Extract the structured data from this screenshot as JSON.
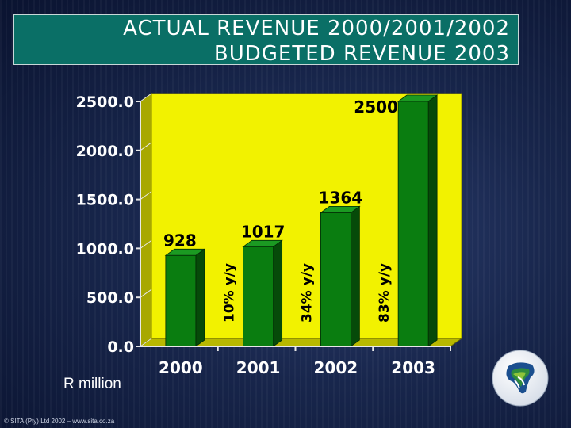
{
  "title_lines": [
    "ACTUAL REVENUE 2000/2001/2002",
    "BUDGETED REVENUE 2003"
  ],
  "unit_label": "R million",
  "copyright": "© SITA (Pty) Ltd 2002 – www.sita.co.za",
  "colors": {
    "title_box": "#0a6f66",
    "plot_back": "#f2f200",
    "plot_side": "#a8a800",
    "plot_floor": "#b8b800",
    "bar_front": "#0a7d10",
    "bar_top": "#1b9a22",
    "bar_side": "#064a09"
  },
  "chart_data": {
    "type": "bar",
    "categories": [
      "2000",
      "2001",
      "2002",
      "2003"
    ],
    "values": [
      928,
      1017,
      1364,
      2500
    ],
    "ylim": [
      0,
      2500
    ],
    "y_ticks": [
      0,
      500,
      1000,
      1500,
      2000,
      2500
    ],
    "y_tick_labels": [
      "0.0",
      "500.0",
      "1000.0",
      "1500.0",
      "2000.0",
      "2500.0"
    ],
    "data_labels": [
      "928",
      "1017",
      "1364",
      "2500"
    ],
    "growth_labels": [
      "",
      "10% y/y",
      "34% y/y",
      "83% y/y"
    ],
    "grid": false,
    "style": "3d"
  }
}
